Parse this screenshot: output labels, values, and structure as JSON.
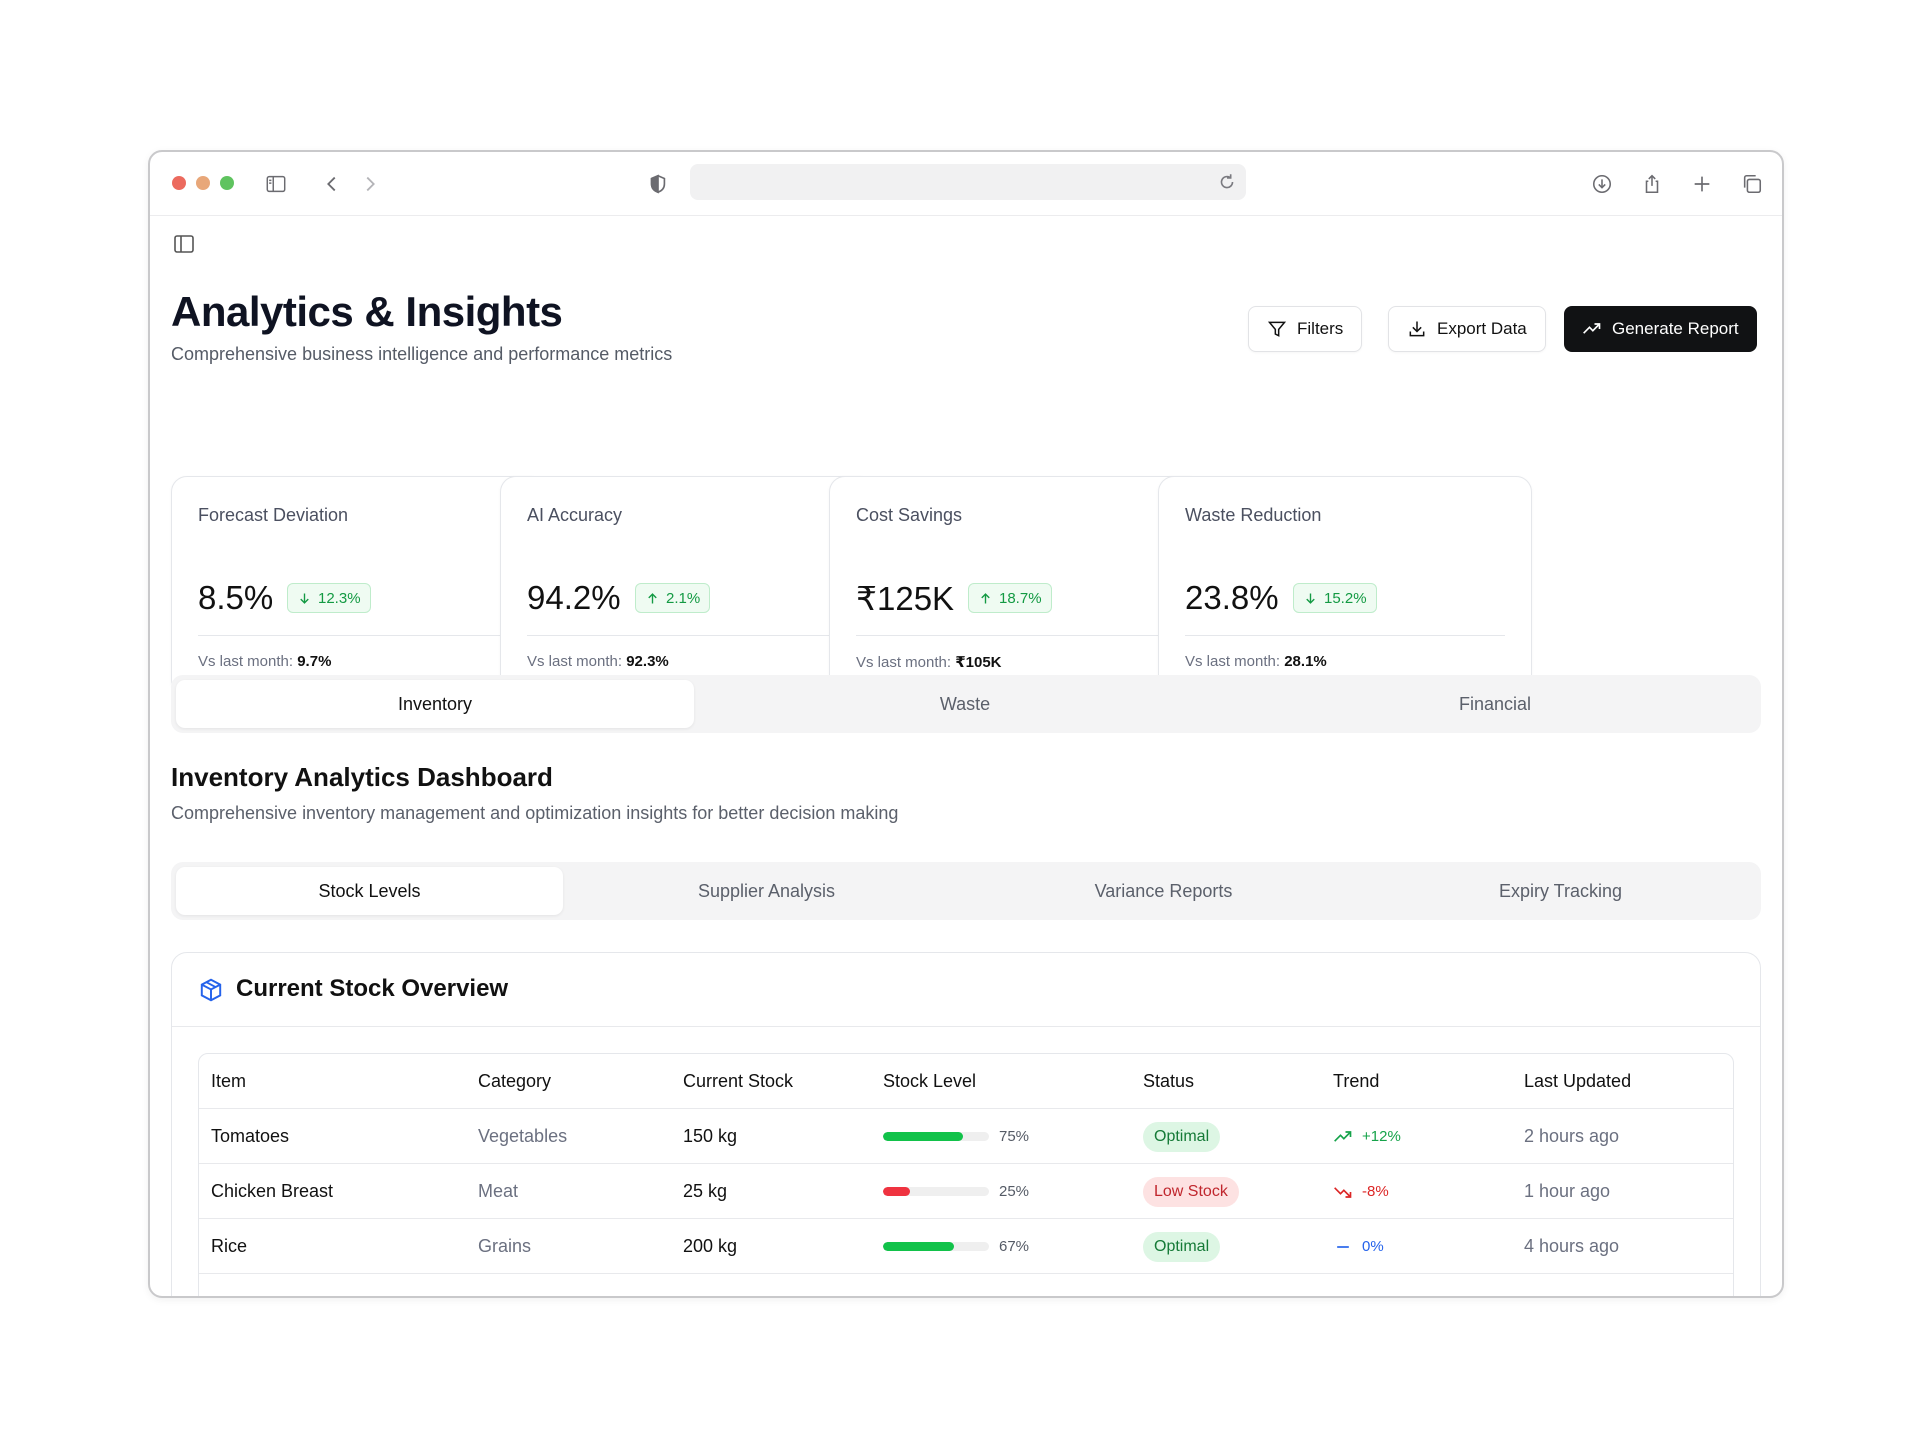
{
  "page": {
    "title": "Analytics & Insights",
    "subtitle": "Comprehensive business intelligence and performance metrics"
  },
  "actions": {
    "filters": "Filters",
    "export": "Export Data",
    "generate": "Generate Report"
  },
  "kpis": [
    {
      "label": "Forecast Deviation",
      "value": "8.5%",
      "change": "12.3%",
      "direction": "down",
      "foot_label": "Vs last month:",
      "foot_value": "9.7%"
    },
    {
      "label": "AI Accuracy",
      "value": "94.2%",
      "change": "2.1%",
      "direction": "up",
      "foot_label": "Vs last month:",
      "foot_value": "92.3%"
    },
    {
      "label": "Cost Savings",
      "value": "₹125K",
      "change": "18.7%",
      "direction": "up",
      "foot_label": "Vs last month:",
      "foot_value": "₹105K"
    },
    {
      "label": "Waste Reduction",
      "value": "23.8%",
      "change": "15.2%",
      "direction": "down",
      "foot_label": "Vs last month:",
      "foot_value": "28.1%"
    }
  ],
  "main_tabs": [
    "Inventory",
    "Waste",
    "Financial"
  ],
  "section": {
    "title": "Inventory Analytics Dashboard",
    "subtitle": "Comprehensive inventory management and optimization insights for better decision making"
  },
  "sub_tabs": [
    "Stock Levels",
    "Supplier Analysis",
    "Variance Reports",
    "Expiry Tracking"
  ],
  "card": {
    "title": "Current Stock Overview",
    "icon": "package-icon"
  },
  "table": {
    "headers": [
      "Item",
      "Category",
      "Current Stock",
      "Stock Level",
      "Status",
      "Trend",
      "Last Updated"
    ],
    "rows": [
      {
        "item": "Tomatoes",
        "category": "Vegetables",
        "stock": "150 kg",
        "level": 75,
        "level_label": "75%",
        "status": "Optimal",
        "status_type": "ok",
        "trend": "+12%",
        "trend_dir": "up",
        "updated": "2 hours ago"
      },
      {
        "item": "Chicken Breast",
        "category": "Meat",
        "stock": "25 kg",
        "level": 25,
        "level_label": "25%",
        "status": "Low Stock",
        "status_type": "low",
        "trend": "-8%",
        "trend_dir": "down",
        "updated": "1 hour ago"
      },
      {
        "item": "Rice",
        "category": "Grains",
        "stock": "200 kg",
        "level": 67,
        "level_label": "67%",
        "status": "Optimal",
        "status_type": "ok",
        "trend": "0%",
        "trend_dir": "flat",
        "updated": "4 hours ago"
      }
    ]
  },
  "colors": {
    "accent_green": "#16a34a",
    "bar_green": "#12c24a",
    "bar_red": "#ef3340",
    "trend_red": "#dc2626",
    "trend_blue": "#2563eb"
  }
}
